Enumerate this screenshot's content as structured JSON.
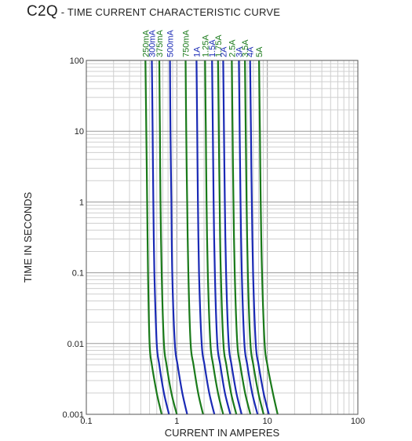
{
  "title": {
    "main": "C2Q",
    "sub": " - TIME CURRENT CHARACTERISTIC CURVE"
  },
  "chart_data": {
    "type": "line",
    "title": "C2Q - TIME CURRENT CHARACTERISTIC CURVE",
    "xlabel": "CURRENT IN AMPERES",
    "ylabel": "TIME IN SECONDS",
    "x_scale": "log",
    "y_scale": "log",
    "xlim": [
      0.1,
      100
    ],
    "ylim": [
      0.001,
      100
    ],
    "grid": true,
    "x_ticks": [
      {
        "value": 0.1,
        "label": "0.1"
      },
      {
        "value": 1,
        "label": "1"
      },
      {
        "value": 10,
        "label": "10"
      },
      {
        "value": 100,
        "label": "100"
      }
    ],
    "y_ticks": [
      {
        "value": 0.001,
        "label": "0.001"
      },
      {
        "value": 0.01,
        "label": "0.01"
      },
      {
        "value": 0.1,
        "label": "0.1"
      },
      {
        "value": 1,
        "label": "1"
      },
      {
        "value": 10,
        "label": "10"
      },
      {
        "value": 100,
        "label": "100"
      }
    ],
    "series": [
      {
        "name": "250mA",
        "color": "#1a7a1a",
        "points": [
          [
            0.45,
            100
          ],
          [
            0.46,
            10
          ],
          [
            0.47,
            1
          ],
          [
            0.48,
            0.1
          ],
          [
            0.5,
            0.01
          ],
          [
            0.53,
            0.005
          ],
          [
            0.6,
            0.002
          ],
          [
            0.68,
            0.001
          ]
        ]
      },
      {
        "name": "300mA",
        "color": "#1a2ab5",
        "points": [
          [
            0.53,
            100
          ],
          [
            0.54,
            10
          ],
          [
            0.55,
            1
          ],
          [
            0.565,
            0.1
          ],
          [
            0.6,
            0.01
          ],
          [
            0.64,
            0.005
          ],
          [
            0.72,
            0.002
          ],
          [
            0.82,
            0.001
          ]
        ]
      },
      {
        "name": "375mA",
        "color": "#1a7a1a",
        "points": [
          [
            0.64,
            100
          ],
          [
            0.65,
            10
          ],
          [
            0.66,
            1
          ],
          [
            0.68,
            0.1
          ],
          [
            0.72,
            0.01
          ],
          [
            0.77,
            0.005
          ],
          [
            0.87,
            0.002
          ],
          [
            1.0,
            0.001
          ]
        ]
      },
      {
        "name": "500mA",
        "color": "#1a2ab5",
        "points": [
          [
            0.84,
            100
          ],
          [
            0.85,
            10
          ],
          [
            0.87,
            1
          ],
          [
            0.89,
            0.1
          ],
          [
            0.95,
            0.01
          ],
          [
            1.02,
            0.005
          ],
          [
            1.15,
            0.002
          ],
          [
            1.3,
            0.001
          ]
        ]
      },
      {
        "name": "750mA",
        "color": "#1a7a1a",
        "points": [
          [
            1.25,
            100
          ],
          [
            1.27,
            10
          ],
          [
            1.3,
            1
          ],
          [
            1.34,
            0.1
          ],
          [
            1.42,
            0.01
          ],
          [
            1.53,
            0.005
          ],
          [
            1.72,
            0.002
          ],
          [
            1.95,
            0.001
          ]
        ]
      },
      {
        "name": "1A",
        "color": "#1a2ab5",
        "points": [
          [
            1.65,
            100
          ],
          [
            1.68,
            10
          ],
          [
            1.71,
            1
          ],
          [
            1.76,
            0.1
          ],
          [
            1.88,
            0.01
          ],
          [
            2.02,
            0.005
          ],
          [
            2.28,
            0.002
          ],
          [
            2.6,
            0.001
          ]
        ]
      },
      {
        "name": "1.25A",
        "color": "#1a7a1a",
        "points": [
          [
            2.05,
            100
          ],
          [
            2.09,
            10
          ],
          [
            2.13,
            1
          ],
          [
            2.2,
            0.1
          ],
          [
            2.35,
            0.01
          ],
          [
            2.52,
            0.005
          ],
          [
            2.85,
            0.002
          ],
          [
            3.25,
            0.001
          ]
        ]
      },
      {
        "name": "1.5A",
        "color": "#1a2ab5",
        "points": [
          [
            2.45,
            100
          ],
          [
            2.5,
            10
          ],
          [
            2.55,
            1
          ],
          [
            2.63,
            0.1
          ],
          [
            2.8,
            0.01
          ],
          [
            3.02,
            0.005
          ],
          [
            3.4,
            0.002
          ],
          [
            3.9,
            0.001
          ]
        ]
      },
      {
        "name": "1.75A",
        "color": "#1a7a1a",
        "points": [
          [
            2.85,
            100
          ],
          [
            2.91,
            10
          ],
          [
            2.97,
            1
          ],
          [
            3.06,
            0.1
          ],
          [
            3.27,
            0.01
          ],
          [
            3.52,
            0.005
          ],
          [
            3.97,
            0.002
          ],
          [
            4.55,
            0.001
          ]
        ]
      },
      {
        "name": "2A",
        "color": "#1a2ab5",
        "points": [
          [
            3.25,
            100
          ],
          [
            3.32,
            10
          ],
          [
            3.39,
            1
          ],
          [
            3.5,
            0.1
          ],
          [
            3.74,
            0.01
          ],
          [
            4.02,
            0.005
          ],
          [
            4.55,
            0.002
          ],
          [
            5.2,
            0.001
          ]
        ]
      },
      {
        "name": "2.5A",
        "color": "#1a7a1a",
        "points": [
          [
            4.05,
            100
          ],
          [
            4.13,
            10
          ],
          [
            4.22,
            1
          ],
          [
            4.36,
            0.1
          ],
          [
            4.66,
            0.01
          ],
          [
            5.02,
            0.005
          ],
          [
            5.68,
            0.002
          ],
          [
            6.5,
            0.001
          ]
        ]
      },
      {
        "name": "3A",
        "color": "#1a2ab5",
        "points": [
          [
            4.85,
            100
          ],
          [
            4.95,
            10
          ],
          [
            5.06,
            1
          ],
          [
            5.22,
            0.1
          ],
          [
            5.58,
            0.01
          ],
          [
            6.0,
            0.005
          ],
          [
            6.8,
            0.002
          ],
          [
            7.8,
            0.001
          ]
        ]
      },
      {
        "name": "3.5A",
        "color": "#1a7a1a",
        "points": [
          [
            5.65,
            100
          ],
          [
            5.77,
            10
          ],
          [
            5.9,
            1
          ],
          [
            6.09,
            0.1
          ],
          [
            6.5,
            0.01
          ],
          [
            7.0,
            0.005
          ],
          [
            7.95,
            0.002
          ],
          [
            9.1,
            0.001
          ]
        ]
      },
      {
        "name": "4A",
        "color": "#1a2ab5",
        "points": [
          [
            6.45,
            100
          ],
          [
            6.59,
            10
          ],
          [
            6.74,
            1
          ],
          [
            6.96,
            0.1
          ],
          [
            7.44,
            0.01
          ],
          [
            8.0,
            0.005
          ],
          [
            9.1,
            0.002
          ],
          [
            10.4,
            0.001
          ]
        ]
      },
      {
        "name": "5A",
        "color": "#1a7a1a",
        "points": [
          [
            8.1,
            100
          ],
          [
            8.27,
            10
          ],
          [
            8.45,
            1
          ],
          [
            8.73,
            0.1
          ],
          [
            9.33,
            0.01
          ],
          [
            10.0,
            0.005
          ],
          [
            11.5,
            0.002
          ],
          [
            13.0,
            0.001
          ]
        ]
      }
    ]
  }
}
